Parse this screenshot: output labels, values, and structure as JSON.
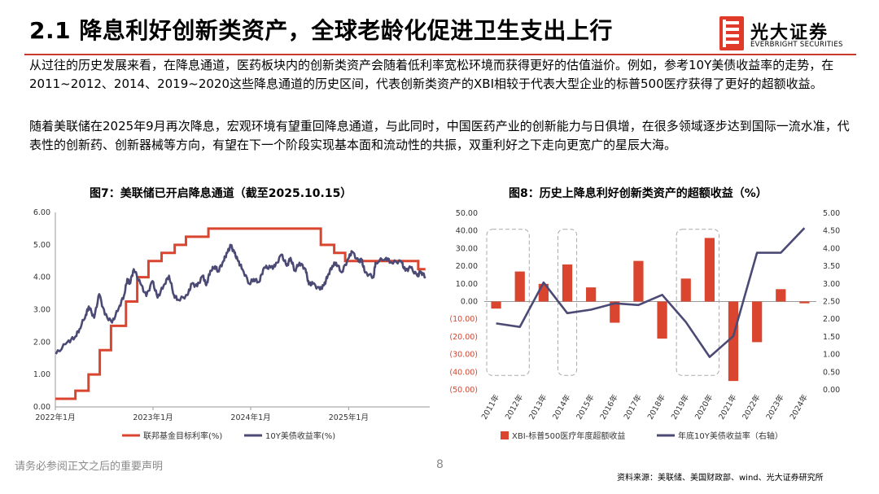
{
  "page": {
    "title": "2.1 降息利好创新类资产，全球老龄化促进卫生支出上行",
    "paragraph1": "从过往的历史发展来看，在降息通道，医药板块内的创新类资产会随着低利率宽松环境而获得更好的估值溢价。例如，参考10Y美债收益率的走势，在2011~2012、2014、2019~2020这些降息通道的历史区间，代表创新类资产的XBI相较于代表大型企业的标普500医疗获得了更好的超额收益。",
    "paragraph2": "随着美联储在2025年9月再次降息，宏观环境有望重回降息通道，与此同时，中国医药产业的创新能力与日俱增，在很多领域逐步达到国际一流水准，代表性的创新药、创新器械等方向，有望在下一个阶段实现基本面和流动性的共振，双重利好之下走向更宽广的星辰大海。",
    "footer_note": "请务必参阅正文之后的重要声明",
    "page_number": "8",
    "source": "资料来源：美联储、美国财政部、wind、光大证券研究所",
    "accent_color": "#c8382c"
  },
  "logo": {
    "cn": "光大证券",
    "en": "EVERBRIGHT SECURITIES"
  },
  "chart_data": [
    {
      "figure_title": "图7：美联储已开启降息通道（截至2025.10.15）",
      "type": "line",
      "x_ticks": [
        "2022年1月",
        "2023年1月",
        "2024年1月",
        "2025年1月"
      ],
      "ylim": [
        0,
        6
      ],
      "y_ticks": [
        "0.00",
        "1.00",
        "2.00",
        "3.00",
        "4.00",
        "5.00",
        "6.00"
      ],
      "legend_position": "bottom",
      "series": [
        {
          "name": "联邦基金目标利率(%)",
          "color": "#d9452f",
          "style": "step",
          "points": [
            [
              "2022-01-01",
              0.25
            ],
            [
              "2022-03-17",
              0.5
            ],
            [
              "2022-05-05",
              1.0
            ],
            [
              "2022-06-16",
              1.75
            ],
            [
              "2022-07-28",
              2.5
            ],
            [
              "2022-09-22",
              3.25
            ],
            [
              "2022-11-03",
              4.0
            ],
            [
              "2022-12-15",
              4.5
            ],
            [
              "2023-02-02",
              4.75
            ],
            [
              "2023-03-23",
              5.0
            ],
            [
              "2023-05-04",
              5.25
            ],
            [
              "2023-07-27",
              5.5
            ],
            [
              "2024-09-19",
              5.0
            ],
            [
              "2024-11-08",
              4.75
            ],
            [
              "2024-12-19",
              4.5
            ],
            [
              "2025-09-18",
              4.25
            ],
            [
              "2025-10-15",
              4.25
            ]
          ]
        },
        {
          "name": "10Y美债收益率(%)",
          "color": "#4b4a75",
          "style": "line",
          "points": [
            [
              "2022-01-03",
              1.63
            ],
            [
              "2022-02-15",
              2.0
            ],
            [
              "2022-03-15",
              2.15
            ],
            [
              "2022-04-01",
              2.4
            ],
            [
              "2022-04-25",
              2.85
            ],
            [
              "2022-05-06",
              3.1
            ],
            [
              "2022-05-26",
              2.75
            ],
            [
              "2022-06-14",
              3.48
            ],
            [
              "2022-07-05",
              2.85
            ],
            [
              "2022-08-01",
              2.6
            ],
            [
              "2022-08-26",
              3.05
            ],
            [
              "2022-09-15",
              3.45
            ],
            [
              "2022-09-27",
              3.95
            ],
            [
              "2022-10-06",
              3.8
            ],
            [
              "2022-10-21",
              4.25
            ],
            [
              "2022-11-15",
              3.8
            ],
            [
              "2022-12-07",
              3.42
            ],
            [
              "2022-12-30",
              3.88
            ],
            [
              "2023-01-18",
              3.37
            ],
            [
              "2023-02-10",
              3.75
            ],
            [
              "2023-03-02",
              4.05
            ],
            [
              "2023-03-20",
              3.45
            ],
            [
              "2023-04-06",
              3.3
            ],
            [
              "2023-05-10",
              3.45
            ],
            [
              "2023-05-26",
              3.8
            ],
            [
              "2023-06-15",
              3.72
            ],
            [
              "2023-07-06",
              4.05
            ],
            [
              "2023-07-19",
              3.75
            ],
            [
              "2023-08-03",
              4.2
            ],
            [
              "2023-08-21",
              4.34
            ],
            [
              "2023-09-01",
              4.18
            ],
            [
              "2023-09-21",
              4.5
            ],
            [
              "2023-10-05",
              4.75
            ],
            [
              "2023-10-19",
              4.98
            ],
            [
              "2023-11-01",
              4.75
            ],
            [
              "2023-11-15",
              4.5
            ],
            [
              "2023-12-01",
              4.25
            ],
            [
              "2023-12-27",
              3.8
            ],
            [
              "2024-01-12",
              3.95
            ],
            [
              "2024-02-01",
              3.85
            ],
            [
              "2024-02-20",
              4.3
            ],
            [
              "2024-03-15",
              4.3
            ],
            [
              "2024-04-01",
              4.33
            ],
            [
              "2024-04-25",
              4.7
            ],
            [
              "2024-05-15",
              4.35
            ],
            [
              "2024-05-29",
              4.6
            ],
            [
              "2024-06-14",
              4.2
            ],
            [
              "2024-07-01",
              4.45
            ],
            [
              "2024-07-24",
              4.25
            ],
            [
              "2024-08-05",
              3.78
            ],
            [
              "2024-08-20",
              3.8
            ],
            [
              "2024-09-16",
              3.62
            ],
            [
              "2024-10-01",
              3.75
            ],
            [
              "2024-10-15",
              4.05
            ],
            [
              "2024-11-01",
              4.35
            ],
            [
              "2024-11-15",
              4.45
            ],
            [
              "2024-12-06",
              4.15
            ],
            [
              "2024-12-31",
              4.58
            ],
            [
              "2025-01-14",
              4.79
            ],
            [
              "2025-02-07",
              4.48
            ],
            [
              "2025-02-18",
              4.55
            ],
            [
              "2025-03-03",
              4.15
            ],
            [
              "2025-04-04",
              4.0
            ],
            [
              "2025-04-11",
              4.45
            ],
            [
              "2025-05-21",
              4.6
            ],
            [
              "2025-06-10",
              4.45
            ],
            [
              "2025-07-15",
              4.5
            ],
            [
              "2025-08-01",
              4.2
            ],
            [
              "2025-08-20",
              4.3
            ],
            [
              "2025-09-16",
              4.03
            ],
            [
              "2025-09-26",
              4.18
            ],
            [
              "2025-10-15",
              4.02
            ]
          ]
        }
      ]
    },
    {
      "figure_title": "图8：历史上降息利好创新类资产的超额收益（%）",
      "type": "bar+line",
      "categories": [
        "2011年",
        "2012年",
        "2013年",
        "2014年",
        "2015年",
        "2016年",
        "2017年",
        "2018年",
        "2019年",
        "2020年",
        "2021年",
        "2022年",
        "2023年",
        "2024年"
      ],
      "y_left_ticks": [
        "50.00",
        "40.00",
        "30.00",
        "20.00",
        "10.00",
        "0.00",
        "(10.00)",
        "(20.00)",
        "(30.00)",
        "(40.00)",
        "(50.00)"
      ],
      "y_left_lim": [
        -50,
        50
      ],
      "y_right_ticks": [
        "5.00",
        "4.50",
        "4.00",
        "3.50",
        "3.00",
        "2.50",
        "2.00",
        "1.50",
        "1.00",
        "0.50",
        "0.00"
      ],
      "y_right_lim": [
        0,
        5
      ],
      "negative_tick_color": "#d9452f",
      "highlight_periods": [
        [
          0,
          1
        ],
        [
          3,
          3
        ],
        [
          8,
          9
        ]
      ],
      "legend_position": "bottom",
      "series": [
        {
          "name": "XBI-标普500医疗年度超额收益",
          "axis": "left",
          "kind": "bar",
          "color": "#d9452f",
          "values": [
            -4,
            17,
            10,
            21,
            8,
            -12,
            23,
            -21,
            13,
            36,
            -45,
            -23,
            7,
            -1
          ]
        },
        {
          "name": "年底10Y美债收益率（右轴）",
          "axis": "right",
          "kind": "line",
          "color": "#4b4a75",
          "values": [
            1.88,
            1.78,
            3.04,
            2.17,
            2.27,
            2.45,
            2.4,
            2.69,
            1.92,
            0.93,
            1.52,
            3.88,
            3.88,
            4.58
          ]
        }
      ]
    }
  ]
}
